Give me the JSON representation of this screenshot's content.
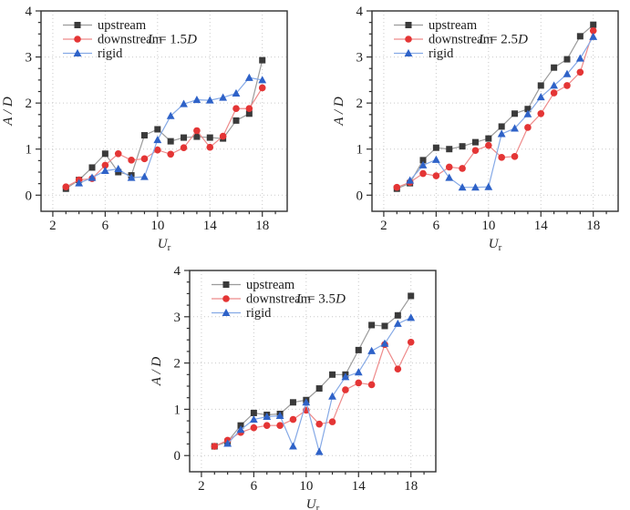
{
  "figure": {
    "background": "#ffffff",
    "ylabel": "A / D",
    "xlabel": {
      "base": "U",
      "sub": "r"
    },
    "legend_entries": [
      "upstream",
      "downstream",
      "rigid"
    ],
    "colors": {
      "upstream_marker": "#3a3a3a",
      "upstream_line": "#9b9b9b",
      "downstream_marker": "#e43535",
      "downstream_line": "#ee8a8a",
      "rigid_marker": "#2e62c8",
      "rigid_line": "#85a9e6",
      "grid": "#c9c9c9",
      "frame": "#2f2f2f",
      "text": "#1c1c1c"
    }
  },
  "chart_data": [
    {
      "type": "line",
      "panel_label": "L = 1.5D",
      "xlabel": "U_r",
      "ylabel": "A / D",
      "xlim": [
        1.1,
        19.9
      ],
      "ylim": [
        -0.35,
        4
      ],
      "x_major_ticks": [
        2,
        6,
        10,
        14,
        18
      ],
      "x_minor_step": 1,
      "y_major_ticks": [
        0,
        1,
        2,
        3,
        4
      ],
      "y_minor_step": 0.25,
      "grid": "dotted",
      "legend_position": "top-left",
      "series": [
        {
          "name": "upstream",
          "marker": "square",
          "marker_color": "#3a3a3a",
          "line_color": "#9b9b9b",
          "x": [
            3,
            4,
            5,
            6,
            7,
            8,
            9,
            10,
            11,
            12,
            13,
            14,
            15,
            16,
            17,
            18
          ],
          "y": [
            0.14,
            0.33,
            0.6,
            0.9,
            0.5,
            0.43,
            1.3,
            1.43,
            1.17,
            1.25,
            1.27,
            1.25,
            1.23,
            1.62,
            1.77,
            2.93
          ]
        },
        {
          "name": "downstream",
          "marker": "circle",
          "marker_color": "#e43535",
          "line_color": "#ee8a8a",
          "x": [
            3,
            4,
            5,
            6,
            7,
            8,
            9,
            10,
            11,
            12,
            13,
            14,
            15,
            16,
            17,
            18
          ],
          "y": [
            0.18,
            0.33,
            0.36,
            0.65,
            0.9,
            0.76,
            0.79,
            0.98,
            0.89,
            1.03,
            1.4,
            1.04,
            1.28,
            1.88,
            1.88,
            2.33
          ]
        },
        {
          "name": "rigid",
          "marker": "triangle",
          "marker_color": "#2e62c8",
          "line_color": "#85a9e6",
          "x": [
            4,
            5,
            6,
            7,
            8,
            9,
            10,
            11,
            12,
            13,
            14,
            15,
            16,
            17,
            18
          ],
          "y": [
            0.26,
            0.38,
            0.53,
            0.57,
            0.38,
            0.4,
            1.2,
            1.72,
            1.98,
            2.07,
            2.06,
            2.12,
            2.21,
            2.55,
            2.5
          ]
        }
      ]
    },
    {
      "type": "line",
      "panel_label": "L = 2.5D",
      "xlabel": "U_r",
      "ylabel": "A / D",
      "xlim": [
        1.1,
        19.9
      ],
      "ylim": [
        -0.35,
        4
      ],
      "x_major_ticks": [
        2,
        6,
        10,
        14,
        18
      ],
      "x_minor_step": 1,
      "y_major_ticks": [
        0,
        1,
        2,
        3,
        4
      ],
      "y_minor_step": 0.25,
      "grid": "dotted",
      "legend_position": "top-left",
      "series": [
        {
          "name": "upstream",
          "marker": "square",
          "marker_color": "#3a3a3a",
          "line_color": "#9b9b9b",
          "x": [
            3,
            4,
            5,
            6,
            7,
            8,
            9,
            10,
            11,
            12,
            13,
            14,
            15,
            16,
            17,
            18
          ],
          "y": [
            0.14,
            0.26,
            0.76,
            1.03,
            1.0,
            1.06,
            1.15,
            1.23,
            1.49,
            1.77,
            1.87,
            2.38,
            2.77,
            2.95,
            3.45,
            3.7
          ]
        },
        {
          "name": "downstream",
          "marker": "circle",
          "marker_color": "#e43535",
          "line_color": "#ee8a8a",
          "x": [
            3,
            4,
            5,
            6,
            7,
            8,
            9,
            10,
            11,
            12,
            13,
            14,
            15,
            16,
            17,
            18
          ],
          "y": [
            0.17,
            0.28,
            0.47,
            0.42,
            0.61,
            0.58,
            0.97,
            1.08,
            0.82,
            0.84,
            1.47,
            1.77,
            2.22,
            2.38,
            2.67,
            3.57
          ]
        },
        {
          "name": "rigid",
          "marker": "triangle",
          "marker_color": "#2e62c8",
          "line_color": "#85a9e6",
          "x": [
            4,
            5,
            6,
            7,
            8,
            9,
            10,
            11,
            12,
            13,
            14,
            15,
            16,
            17,
            18
          ],
          "y": [
            0.32,
            0.65,
            0.77,
            0.38,
            0.17,
            0.17,
            0.18,
            1.33,
            1.45,
            1.76,
            2.13,
            2.38,
            2.63,
            2.97,
            3.44
          ]
        }
      ]
    },
    {
      "type": "line",
      "panel_label": "L = 3.5D",
      "xlabel": "U_r",
      "ylabel": "A / D",
      "xlim": [
        1.1,
        19.9
      ],
      "ylim": [
        -0.35,
        4
      ],
      "x_major_ticks": [
        2,
        6,
        10,
        14,
        18
      ],
      "x_minor_step": 1,
      "y_major_ticks": [
        0,
        1,
        2,
        3,
        4
      ],
      "y_minor_step": 0.25,
      "grid": "dotted",
      "legend_position": "top-left",
      "series": [
        {
          "name": "upstream",
          "marker": "square",
          "marker_color": "#3a3a3a",
          "line_color": "#9b9b9b",
          "x": [
            3,
            4,
            5,
            6,
            7,
            8,
            9,
            10,
            11,
            12,
            13,
            14,
            15,
            16,
            17,
            18
          ],
          "y": [
            0.2,
            0.3,
            0.65,
            0.92,
            0.88,
            0.9,
            1.15,
            1.2,
            1.45,
            1.75,
            1.75,
            2.28,
            2.82,
            2.8,
            3.03,
            3.45
          ]
        },
        {
          "name": "downstream",
          "marker": "circle",
          "marker_color": "#e43535",
          "line_color": "#ee8a8a",
          "x": [
            3,
            4,
            5,
            6,
            7,
            8,
            9,
            10,
            11,
            12,
            13,
            14,
            15,
            16,
            17,
            18
          ],
          "y": [
            0.2,
            0.33,
            0.5,
            0.6,
            0.65,
            0.65,
            0.78,
            0.98,
            0.68,
            0.73,
            1.42,
            1.57,
            1.53,
            2.4,
            1.87,
            2.45
          ]
        },
        {
          "name": "rigid",
          "marker": "triangle",
          "marker_color": "#2e62c8",
          "line_color": "#85a9e6",
          "x": [
            4,
            5,
            6,
            7,
            8,
            9,
            10,
            11,
            12,
            13,
            14,
            15,
            16,
            17,
            18
          ],
          "y": [
            0.26,
            0.56,
            0.78,
            0.84,
            0.86,
            0.2,
            1.15,
            0.08,
            1.28,
            1.7,
            1.8,
            2.26,
            2.42,
            2.85,
            2.98
          ]
        }
      ]
    }
  ]
}
